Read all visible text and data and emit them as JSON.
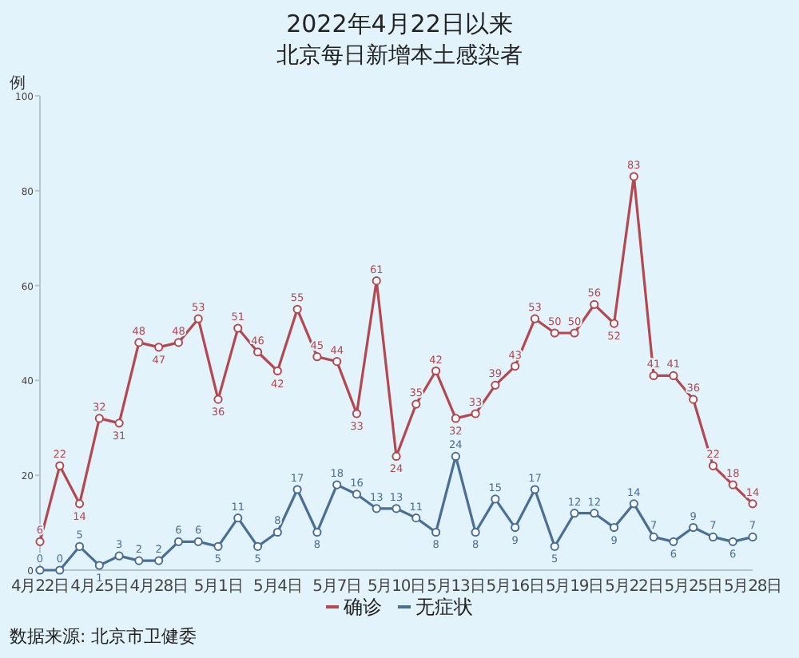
{
  "chart_data": {
    "type": "line",
    "title": "2022年4月22日以来",
    "subtitle": "北京每日新增本土感染者",
    "ylabel": "例",
    "categories": [
      "4月22日",
      null,
      null,
      "4月25日",
      null,
      null,
      "4月28日",
      null,
      null,
      "5月1日",
      null,
      null,
      "5月4日",
      null,
      null,
      "5月7日",
      null,
      null,
      "5月10日",
      null,
      null,
      "5月13日",
      null,
      null,
      "5月16日",
      null,
      null,
      "5月19日",
      null,
      null,
      "5月22日",
      null,
      null,
      "5月25日",
      null,
      null,
      "5月28日"
    ],
    "series": [
      {
        "name": "确诊",
        "color": "#b5474f",
        "values": [
          6,
          22,
          14,
          32,
          31,
          48,
          47,
          48,
          53,
          36,
          51,
          46,
          42,
          55,
          45,
          44,
          33,
          61,
          24,
          35,
          42,
          32,
          33,
          39,
          43,
          53,
          50,
          50,
          56,
          52,
          83,
          41,
          41,
          36,
          22,
          18,
          14
        ]
      },
      {
        "name": "无症状",
        "color": "#4a6f96",
        "values": [
          0,
          0,
          5,
          1,
          3,
          2,
          2,
          6,
          6,
          5,
          11,
          5,
          8,
          17,
          8,
          18,
          16,
          13,
          13,
          11,
          8,
          24,
          8,
          15,
          9,
          17,
          5,
          12,
          12,
          9,
          14,
          7,
          6,
          9,
          7,
          6,
          7
        ]
      }
    ],
    "ylim": [
      0,
      100
    ],
    "yticks": [
      0,
      20,
      40,
      60,
      80,
      100
    ],
    "marker": "circle",
    "data_labels": true,
    "legend": "bottom",
    "annotations": [
      "数据来源: 北京市卫健委"
    ]
  }
}
